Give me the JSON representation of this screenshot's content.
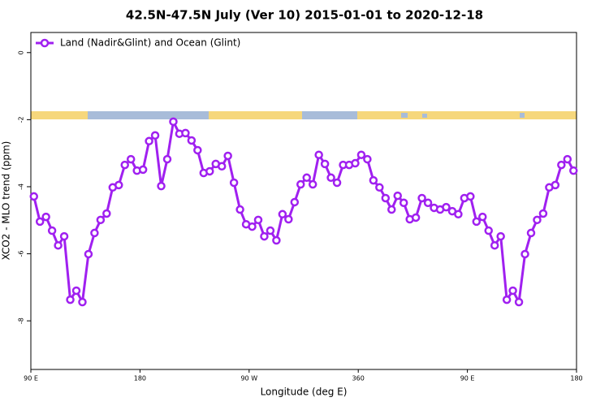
{
  "chart_data": {
    "type": "line",
    "title": "42.5N-47.5N July (Ver 10)   2015-01-01 to 2020-12-18",
    "x_label": "Longitude (deg E)",
    "y_label": "XCO2 - MLO trend (ppm)",
    "x": [
      92.5,
      97.5,
      102.5,
      107.5,
      112.5,
      117.5,
      122.5,
      127.5,
      132.5,
      137.5,
      142.5,
      147.5,
      152.5,
      157.5,
      162.5,
      167.5,
      172.5,
      177.5,
      182.5,
      187.5,
      192.5,
      197.5,
      202.5,
      207.5,
      212.5,
      217.5,
      222.5,
      227.5,
      232.5,
      237.5,
      242.5,
      247.5,
      252.5,
      257.5,
      262.5,
      267.5,
      272.5,
      277.5,
      282.5,
      287.5,
      292.5,
      297.5,
      302.5,
      307.5,
      312.5,
      317.5,
      322.5,
      327.5,
      332.5,
      337.5,
      342.5,
      347.5,
      352.5,
      357.5,
      362.5,
      367.5,
      372.5,
      377.5,
      382.5,
      387.5,
      392.5,
      397.5,
      402.5,
      407.5,
      412.5,
      417.5,
      422.5,
      427.5,
      432.5,
      437.5,
      442.5,
      447.5,
      452.5,
      457.5,
      462.5,
      467.5,
      472.5,
      477.5,
      482.5,
      487.5,
      492.5,
      497.5,
      502.5,
      507.5,
      512.5,
      517.5,
      522.5,
      527.5,
      532.5,
      537.5
    ],
    "series": [
      {
        "name": "Land (Nadir&Glint) and Ocean (Glint)",
        "color": "#a020f0",
        "values": [
          -4.29,
          -5.04,
          -4.9,
          -5.31,
          -5.75,
          -5.48,
          -7.37,
          -7.1,
          -7.44,
          -6.01,
          -5.38,
          -4.99,
          -4.8,
          -4.02,
          -3.95,
          -3.35,
          -3.18,
          -3.52,
          -3.49,
          -2.64,
          -2.47,
          -3.98,
          -3.18,
          -2.06,
          -2.42,
          -2.4,
          -2.62,
          -2.91,
          -3.59,
          -3.54,
          -3.32,
          -3.39,
          -3.08,
          -3.88,
          -4.68,
          -5.12,
          -5.19,
          -4.99,
          -5.48,
          -5.31,
          -5.6,
          -4.82,
          -4.97,
          -4.46,
          -3.93,
          -3.73,
          -3.93,
          -3.05,
          -3.32,
          -3.73,
          -3.88,
          -3.35,
          -3.35,
          -3.3,
          -3.05,
          -3.18,
          -3.81,
          -4.02,
          -4.34,
          -4.68,
          -4.27,
          -4.48,
          -4.97,
          -4.92,
          -4.34,
          -4.48,
          -4.63,
          -4.68,
          -4.61,
          -4.73,
          -4.82,
          -4.34,
          -4.29,
          -5.04,
          -4.9,
          -5.31,
          -5.75,
          -5.48,
          -7.37,
          -7.1,
          -7.44,
          -6.01,
          -5.38,
          -4.99,
          -4.8,
          -4.02,
          -3.95,
          -3.35,
          -3.18,
          -3.52
        ]
      }
    ],
    "xlim": [
      90,
      540
    ],
    "xticks": [
      {
        "value": 90,
        "label": "90 E"
      },
      180,
      {
        "value": 270,
        "label": "90 W"
      },
      360,
      {
        "value": 450,
        "label": "90 E"
      },
      {
        "value": 540,
        "label": "180"
      }
    ],
    "ylim": [
      -9.45,
      0.6
    ],
    "yticks": [
      0,
      -2,
      -4,
      -6,
      -8
    ],
    "legend": "top-left"
  }
}
